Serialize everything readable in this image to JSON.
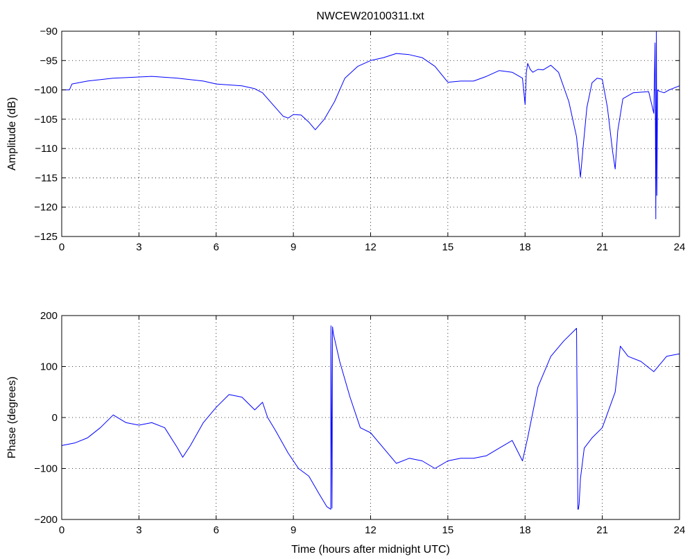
{
  "title": "NWCEW20100311.txt",
  "chart_data": [
    {
      "type": "line",
      "title": "NWCEW20100311.txt",
      "xlabel": "",
      "ylabel": "Amplitude (dB)",
      "xlim": [
        0,
        24
      ],
      "ylim": [
        -125,
        -90
      ],
      "xticks": [
        0,
        3,
        6,
        9,
        12,
        15,
        18,
        21,
        24
      ],
      "yticks": [
        -90,
        -95,
        -100,
        -105,
        -110,
        -115,
        -120,
        -125
      ],
      "grid": true,
      "color": "#0000ff",
      "x": [
        0,
        0.3,
        0.4,
        1,
        2,
        3,
        3.5,
        4.5,
        5.5,
        6,
        7,
        7.5,
        7.8,
        8.2,
        8.6,
        8.8,
        9,
        9.3,
        9.6,
        9.85,
        10.2,
        10.6,
        11,
        11.5,
        12,
        12.5,
        13,
        13.5,
        14,
        14.5,
        15,
        15.5,
        16,
        16.5,
        17,
        17.5,
        17.9,
        18.0,
        18.05,
        18.1,
        18.2,
        18.3,
        18.5,
        18.7,
        19,
        19.3,
        19.7,
        20.0,
        20.15,
        20.25,
        20.4,
        20.6,
        20.8,
        21.0,
        21.2,
        21.4,
        21.5,
        21.6,
        21.8,
        22.2,
        22.8,
        23.0,
        23.05,
        23.08,
        23.1,
        23.12,
        23.15,
        23.2,
        23.4,
        23.6,
        24
      ],
      "y": [
        -100,
        -100,
        -99,
        -98.5,
        -98,
        -97.8,
        -97.7,
        -98,
        -98.5,
        -99,
        -99.3,
        -99.8,
        -100.5,
        -102.5,
        -104.5,
        -104.8,
        -104.2,
        -104.3,
        -105.5,
        -106.8,
        -105,
        -102,
        -98,
        -96,
        -95,
        -94.5,
        -93.8,
        -94,
        -94.5,
        -96,
        -98.7,
        -98.5,
        -98.5,
        -97.7,
        -96.7,
        -97,
        -98,
        -102.5,
        -97,
        -95.5,
        -96.5,
        -97,
        -96.5,
        -96.6,
        -95.8,
        -97,
        -102,
        -108,
        -114.9,
        -110,
        -103,
        -98.8,
        -98,
        -98.2,
        -103,
        -110.5,
        -113.5,
        -107,
        -101.5,
        -100.5,
        -100.3,
        -104,
        -92,
        -122,
        -90,
        -118,
        -100,
        -100.2,
        -100.5,
        -100,
        -99.3
      ]
    },
    {
      "type": "line",
      "title": "",
      "xlabel": "Time (hours after midnight UTC)",
      "ylabel": "Phase (degrees)",
      "xlim": [
        0,
        24
      ],
      "ylim": [
        -200,
        200
      ],
      "xticks": [
        0,
        3,
        6,
        9,
        12,
        15,
        18,
        21,
        24
      ],
      "yticks": [
        200,
        100,
        0,
        -100,
        -200
      ],
      "grid": true,
      "color": "#0000ff",
      "x": [
        0,
        0.5,
        1,
        1.5,
        2,
        2.5,
        3,
        3.5,
        4,
        4.5,
        4.7,
        5,
        5.5,
        6,
        6.5,
        7,
        7.5,
        7.8,
        8,
        8.3,
        8.8,
        9.2,
        9.6,
        10,
        10.3,
        10.45,
        10.46,
        10.5,
        10.52,
        10.55,
        10.8,
        11.2,
        11.6,
        12,
        12.5,
        13,
        13.5,
        14,
        14.5,
        15,
        15.5,
        16,
        16.5,
        17,
        17.5,
        17.9,
        18.1,
        18.5,
        19,
        19.5,
        20,
        20.05,
        20.07,
        20.1,
        20.15,
        20.3,
        20.6,
        21,
        21.5,
        21.7,
        22,
        22.5,
        23,
        23.5,
        24
      ],
      "y": [
        -55,
        -50,
        -40,
        -20,
        5,
        -10,
        -15,
        -10,
        -20,
        -60,
        -78,
        -55,
        -10,
        20,
        45,
        40,
        15,
        30,
        0,
        -25,
        -70,
        -100,
        -115,
        -150,
        -175,
        -180,
        180,
        -178,
        178,
        165,
        110,
        40,
        -20,
        -30,
        -60,
        -90,
        -80,
        -85,
        -100,
        -85,
        -80,
        -80,
        -75,
        -60,
        -45,
        -85,
        -40,
        60,
        120,
        150,
        175,
        -180,
        -180,
        -170,
        -120,
        -60,
        -40,
        -20,
        50,
        140,
        120,
        110,
        90,
        120,
        125
      ]
    }
  ]
}
